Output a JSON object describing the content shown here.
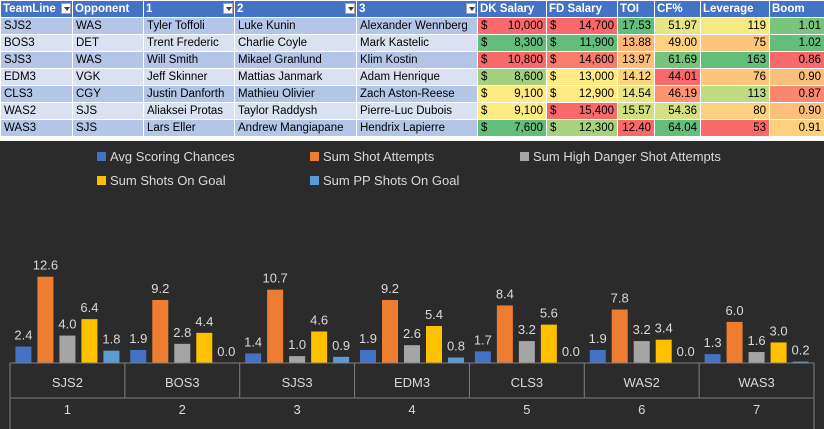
{
  "table": {
    "headers": [
      "TeamLine",
      "Opponent",
      "1",
      "2",
      "3",
      "DK Salary",
      "FD Salary",
      "TOI",
      "CF%",
      "Leverage",
      "Boom"
    ],
    "rows": [
      {
        "teamline": "SJS2",
        "opponent": "WAS",
        "p1": "Tyler Toffoli",
        "p2": "Luke Kunin",
        "p3": "Alexander Wennberg",
        "dk": "10,000",
        "fd": "14,700",
        "toi": "17.53",
        "cf": "51.97",
        "lev": "119",
        "boom": "1.01",
        "colors": {
          "dk": "#f8696b",
          "fd": "#f8696b",
          "toi": "#63be7b",
          "cf": "#e7e483",
          "lev": "#f5e984",
          "boom": "#7ac57d"
        }
      },
      {
        "teamline": "BOS3",
        "opponent": "DET",
        "p1": "Trent Frederic",
        "p2": "Charlie Coyle",
        "p3": "Mark Kastelic",
        "dk": "8,300",
        "fd": "11,900",
        "toi": "13.88",
        "cf": "49.00",
        "lev": "75",
        "boom": "1.02",
        "colors": {
          "dk": "#63be7b",
          "fd": "#63be7b",
          "toi": "#fbb77a",
          "cf": "#fcd27f",
          "lev": "#fcc47c",
          "boom": "#63be7b"
        }
      },
      {
        "teamline": "SJS3",
        "opponent": "WAS",
        "p1": "Will Smith",
        "p2": "Mikael Granlund",
        "p3": "Klim Kostin",
        "dk": "10,800",
        "fd": "14,600",
        "toi": "13.97",
        "cf": "61.69",
        "lev": "163",
        "boom": "0.86",
        "colors": {
          "dk": "#f8696b",
          "fd": "#f97b6e",
          "toi": "#fcbe7b",
          "cf": "#75c37c",
          "lev": "#63be7b",
          "boom": "#f8696b"
        }
      },
      {
        "teamline": "EDM3",
        "opponent": "VGK",
        "p1": "Jeff Skinner",
        "p2": "Mattias Janmark",
        "p3": "Adam Henrique",
        "dk": "8,600",
        "fd": "13,000",
        "toi": "14.12",
        "cf": "44.01",
        "lev": "76",
        "boom": "0.90",
        "colors": {
          "dk": "#a2d07f",
          "fd": "#ffeb84",
          "toi": "#fdd480",
          "cf": "#f8696b",
          "lev": "#fcc57c",
          "boom": "#fcbf7b"
        }
      },
      {
        "teamline": "CLS3",
        "opponent": "CGY",
        "p1": "Justin Danforth",
        "p2": "Mathieu Olivier",
        "p3": "Zach Aston-Reese",
        "dk": "9,100",
        "fd": "12,900",
        "toi": "14.54",
        "cf": "46.19",
        "lev": "113",
        "boom": "0.87",
        "colors": {
          "dk": "#ffeb84",
          "fd": "#fee983",
          "toi": "#e8e583",
          "cf": "#fa9473",
          "lev": "#bfdb81",
          "boom": "#f98770"
        }
      },
      {
        "teamline": "WAS2",
        "opponent": "SJS",
        "p1": "Aliaksei Protas",
        "p2": "Taylor Raddysh",
        "p3": "Pierre-Luc Dubois",
        "dk": "9,100",
        "fd": "15,400",
        "toi": "15.57",
        "cf": "54.36",
        "lev": "80",
        "boom": "0.90",
        "colors": {
          "dk": "#ffeb84",
          "fd": "#f8696b",
          "toi": "#cfdf81",
          "cf": "#d5e082",
          "lev": "#fcd07f",
          "boom": "#fcbf7b"
        }
      },
      {
        "teamline": "WAS3",
        "opponent": "SJS",
        "p1": "Lars Eller",
        "p2": "Andrew Mangiapane",
        "p3": "Hendrix Lapierre",
        "dk": "7,600",
        "fd": "12,300",
        "toi": "12.40",
        "cf": "64.04",
        "lev": "53",
        "boom": "0.91",
        "colors": {
          "dk": "#63be7b",
          "fd": "#a9d27f",
          "toi": "#f8696b",
          "cf": "#63be7b",
          "lev": "#f8696b",
          "boom": "#fcd07f"
        }
      }
    ]
  },
  "chart_data": {
    "type": "bar",
    "categories": [
      "SJS2",
      "BOS3",
      "SJS3",
      "EDM3",
      "CLS3",
      "WAS2",
      "WAS3"
    ],
    "category_indices": [
      "1",
      "2",
      "3",
      "4",
      "5",
      "6",
      "7"
    ],
    "ylim": [
      0,
      14
    ],
    "legend_position": "top",
    "series": [
      {
        "name": "Avg Scoring Chances",
        "color": "#4472c4",
        "values": [
          2.4,
          1.9,
          1.4,
          1.9,
          1.7,
          1.9,
          1.3
        ]
      },
      {
        "name": "Sum Shot Attempts",
        "color": "#ed7d31",
        "values": [
          12.6,
          9.2,
          10.7,
          9.2,
          8.4,
          7.8,
          6.0
        ]
      },
      {
        "name": "Sum High Danger Shot Attempts",
        "color": "#a5a5a5",
        "values": [
          4.0,
          2.8,
          1.0,
          2.6,
          3.2,
          3.2,
          1.6
        ]
      },
      {
        "name": "Sum Shots On Goal",
        "color": "#ffc000",
        "values": [
          6.4,
          4.4,
          4.6,
          5.4,
          5.6,
          3.4,
          3.0
        ]
      },
      {
        "name": "Sum PP Shots On Goal",
        "color": "#5b9bd5",
        "values": [
          1.8,
          0.0,
          0.9,
          0.8,
          0.0,
          0.0,
          0.2
        ]
      }
    ]
  }
}
